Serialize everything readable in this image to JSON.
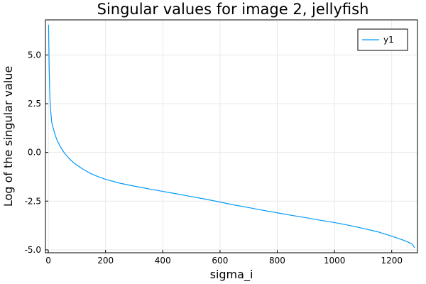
{
  "chart_data": {
    "type": "line",
    "title": "Singular values for image 2, jellyfish",
    "xlabel": "sigma_i",
    "ylabel": "Log of the singular value",
    "xlim": [
      -10,
      1290
    ],
    "ylim": [
      -5.15,
      6.8
    ],
    "xticks": [
      0,
      200,
      400,
      600,
      800,
      1000,
      1200
    ],
    "xtick_labels": [
      "0",
      "200",
      "400",
      "600",
      "800",
      "1000",
      "1200"
    ],
    "yticks": [
      -5.0,
      -2.5,
      0.0,
      2.5,
      5.0
    ],
    "ytick_labels": [
      "-5.0",
      "-2.5",
      "0.0",
      "2.5",
      "5.0"
    ],
    "grid": true,
    "legend": {
      "position": "top-right",
      "entries": [
        "y1"
      ]
    },
    "series": [
      {
        "name": "y1",
        "color": "#009AFA",
        "x": [
          1,
          2,
          3,
          4,
          5,
          6,
          8,
          10,
          12,
          15,
          20,
          25,
          30,
          40,
          50,
          60,
          75,
          90,
          100,
          120,
          150,
          175,
          200,
          250,
          300,
          350,
          400,
          450,
          500,
          550,
          600,
          650,
          700,
          750,
          800,
          850,
          900,
          950,
          1000,
          1050,
          1100,
          1150,
          1200,
          1240,
          1260,
          1270,
          1275,
          1280
        ],
        "y": [
          6.55,
          5.4,
          4.4,
          3.7,
          3.1,
          2.65,
          2.2,
          1.85,
          1.55,
          1.35,
          1.1,
          0.85,
          0.65,
          0.35,
          0.1,
          -0.1,
          -0.35,
          -0.55,
          -0.65,
          -0.85,
          -1.1,
          -1.25,
          -1.38,
          -1.58,
          -1.73,
          -1.87,
          -2.0,
          -2.13,
          -2.27,
          -2.4,
          -2.55,
          -2.7,
          -2.83,
          -2.97,
          -3.1,
          -3.23,
          -3.35,
          -3.48,
          -3.6,
          -3.74,
          -3.9,
          -4.07,
          -4.3,
          -4.5,
          -4.62,
          -4.7,
          -4.78,
          -4.9
        ]
      }
    ]
  }
}
